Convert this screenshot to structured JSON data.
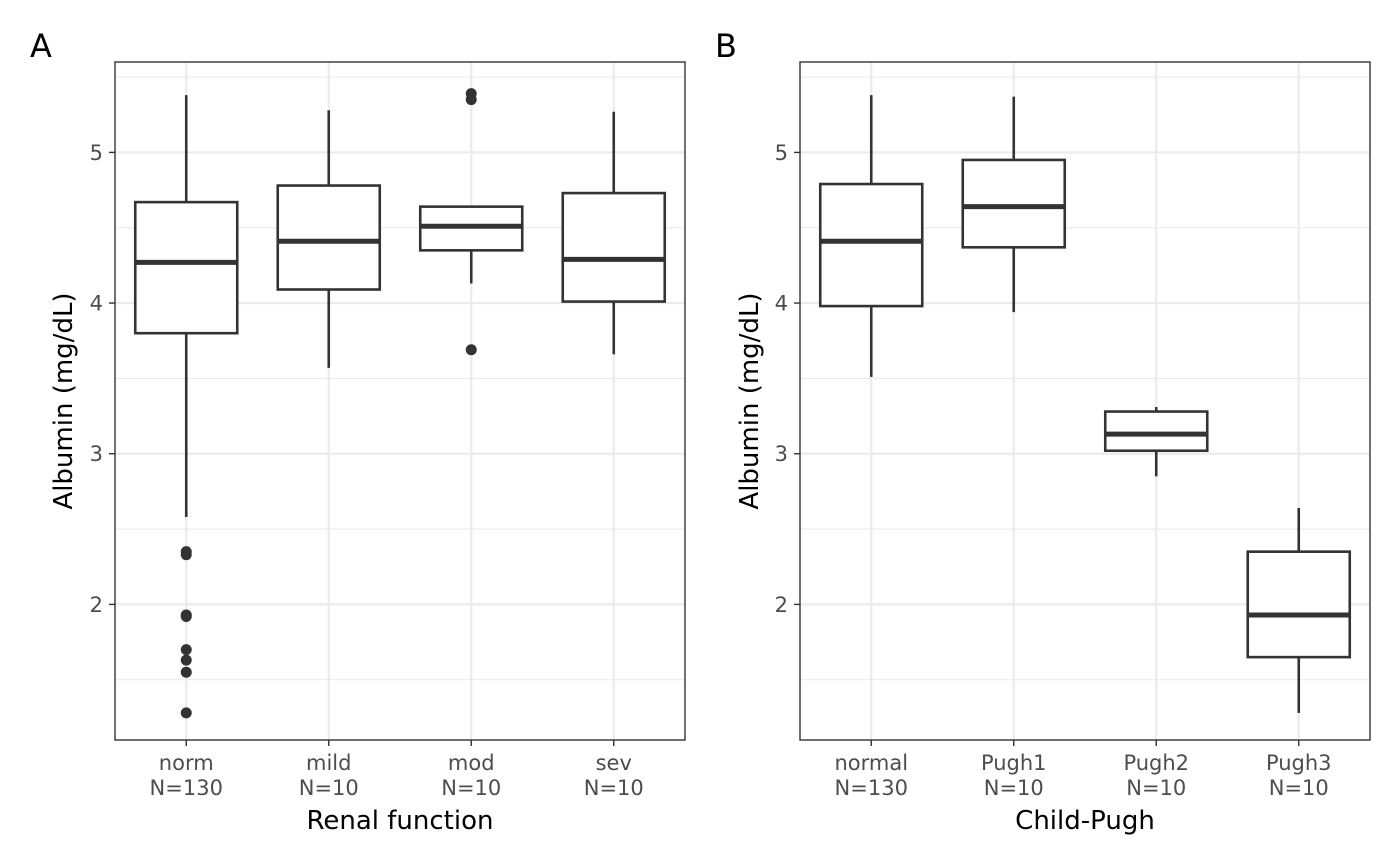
{
  "chart_data": [
    {
      "type": "box",
      "panel_label": "A",
      "xlabel": "Renal function",
      "ylabel": "Albumin (mg/dL)",
      "ylim": [
        1.1,
        5.6
      ],
      "y_ticks": [
        2,
        3,
        4,
        5
      ],
      "y_tick_labels": [
        "2",
        "3",
        "4",
        "5"
      ],
      "grid": true,
      "categories": [
        {
          "label": "norm",
          "count_label": "N=130",
          "min": 2.58,
          "q1": 3.8,
          "median": 4.27,
          "q3": 4.67,
          "max": 5.38,
          "outliers": [
            2.35,
            2.33,
            1.93,
            1.92,
            1.7,
            1.63,
            1.55,
            1.28
          ]
        },
        {
          "label": "mild",
          "count_label": "N=10",
          "min": 3.57,
          "q1": 4.09,
          "median": 4.41,
          "q3": 4.78,
          "max": 5.28,
          "outliers": []
        },
        {
          "label": "mod",
          "count_label": "N=10",
          "min": 4.13,
          "q1": 4.35,
          "median": 4.51,
          "q3": 4.64,
          "max": 4.64,
          "outliers": [
            5.39,
            5.35,
            3.69
          ]
        },
        {
          "label": "sev",
          "count_label": "N=10",
          "min": 3.66,
          "q1": 4.01,
          "median": 4.29,
          "q3": 4.73,
          "max": 5.27,
          "outliers": []
        }
      ]
    },
    {
      "type": "box",
      "panel_label": "B",
      "xlabel": "Child-Pugh",
      "ylabel": "Albumin (mg/dL)",
      "ylim": [
        1.1,
        5.6
      ],
      "y_ticks": [
        2,
        3,
        4,
        5
      ],
      "y_tick_labels": [
        "2",
        "3",
        "4",
        "5"
      ],
      "grid": true,
      "categories": [
        {
          "label": "normal",
          "count_label": "N=130",
          "min": 3.51,
          "q1": 3.98,
          "median": 4.41,
          "q3": 4.79,
          "max": 5.38,
          "outliers": []
        },
        {
          "label": "Pugh1",
          "count_label": "N=10",
          "min": 3.94,
          "q1": 4.37,
          "median": 4.64,
          "q3": 4.95,
          "max": 5.37,
          "outliers": []
        },
        {
          "label": "Pugh2",
          "count_label": "N=10",
          "min": 2.85,
          "q1": 3.02,
          "median": 3.13,
          "q3": 3.28,
          "max": 3.31,
          "outliers": []
        },
        {
          "label": "Pugh3",
          "count_label": "N=10",
          "min": 1.28,
          "q1": 1.65,
          "median": 1.93,
          "q3": 2.35,
          "max": 2.64,
          "outliers": []
        }
      ]
    }
  ]
}
